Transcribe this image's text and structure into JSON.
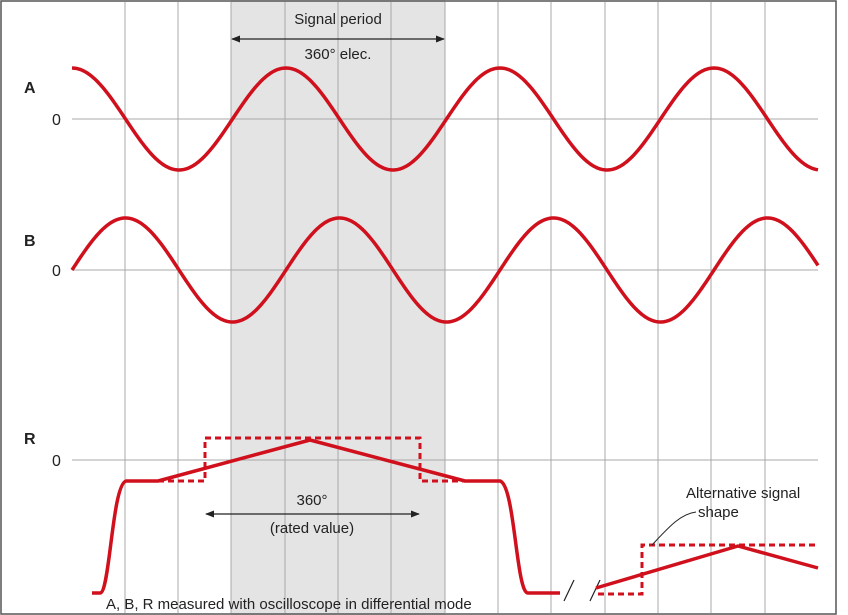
{
  "colors": {
    "signal": "#d0101c",
    "grid": "#a9a9a9",
    "shade": "#e4e4e4",
    "frame": "#555555",
    "text": "#222222"
  },
  "channels": {
    "a": {
      "name": "A",
      "zero": "0"
    },
    "b": {
      "name": "B",
      "zero": "0"
    },
    "r": {
      "name": "R",
      "zero": "0"
    }
  },
  "annotations": {
    "signal_period_title": "Signal period",
    "signal_period_value": "360° elec.",
    "rated_value_angle": "360°",
    "rated_value_note": "(rated value)",
    "alternative_line1": "Alternative signal",
    "alternative_line2": "shape",
    "footer": "A, B, R measured with oscilloscope in differential mode"
  },
  "signal": {
    "period_deg": 360,
    "b_phase_lag_deg": 90,
    "shape": "sine"
  }
}
